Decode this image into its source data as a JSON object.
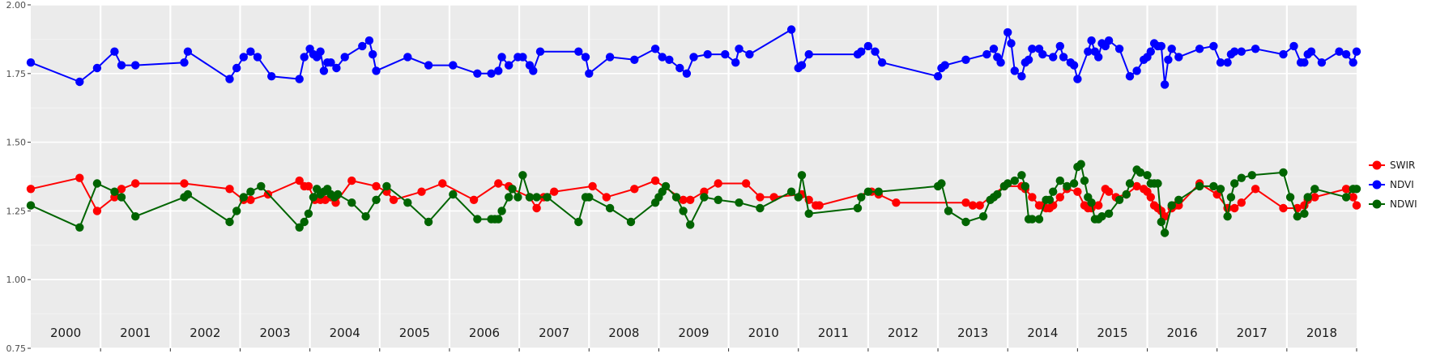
{
  "chart_data": {
    "type": "line",
    "title": "",
    "xlabel": "",
    "ylabel": "",
    "ylim": [
      0.75,
      2.0
    ],
    "yticks": [
      "0.75",
      "1.00",
      "1.25",
      "1.50",
      "1.75",
      "2.00"
    ],
    "ytick_values": [
      0.75,
      1.0,
      1.25,
      1.5,
      1.75,
      2.0
    ],
    "xlim": [
      2000.0,
      2019.0
    ],
    "grid": true,
    "legend_position": "right",
    "year_labels": [
      "2000",
      "2001",
      "2002",
      "2003",
      "2004",
      "2005",
      "2006",
      "2007",
      "2008",
      "2009",
      "2010",
      "2011",
      "2012",
      "2013",
      "2014",
      "2015",
      "2016",
      "2017",
      "2018"
    ],
    "series": [
      {
        "name": "SWIR",
        "color": "#ff0000",
        "x": [
          2000.0,
          2000.7,
          2000.95,
          2001.2,
          2001.3,
          2001.5,
          2002.2,
          2002.85,
          2003.05,
          2003.15,
          2003.4,
          2003.85,
          2003.92,
          2003.98,
          2004.07,
          2004.15,
          2004.22,
          2004.3,
          2004.37,
          2004.6,
          2004.95,
          2005.1,
          2005.2,
          2005.6,
          2005.9,
          2006.35,
          2006.7,
          2006.85,
          2006.9,
          2007.15,
          2007.25,
          2007.35,
          2007.5,
          2008.05,
          2008.25,
          2008.65,
          2008.95,
          2009.35,
          2009.45,
          2009.65,
          2009.85,
          2010.25,
          2010.45,
          2010.65,
          2011.05,
          2011.15,
          2011.25,
          2011.3,
          2012.05,
          2012.15,
          2012.4,
          2013.4,
          2013.5,
          2013.6,
          2013.95,
          2014.2,
          2014.25,
          2014.35,
          2014.45,
          2014.5,
          2014.55,
          2014.6,
          2014.65,
          2014.75,
          2014.85,
          2015.0,
          2015.1,
          2015.15,
          2015.2,
          2015.3,
          2015.4,
          2015.45,
          2015.55,
          2015.7,
          2015.85,
          2015.95,
          2016.0,
          2016.05,
          2016.1,
          2016.15,
          2016.2,
          2016.25,
          2016.35,
          2016.4,
          2016.45,
          2016.75,
          2017.0,
          2017.15,
          2017.25,
          2017.35,
          2017.55,
          2017.95,
          2018.15,
          2018.25,
          2018.3,
          2018.4,
          2018.85,
          2018.95,
          2019.0
        ],
        "y": [
          1.33,
          1.37,
          1.25,
          1.3,
          1.33,
          1.35,
          1.35,
          1.33,
          1.29,
          1.29,
          1.31,
          1.36,
          1.34,
          1.34,
          1.29,
          1.29,
          1.29,
          1.3,
          1.28,
          1.36,
          1.34,
          1.32,
          1.29,
          1.32,
          1.35,
          1.29,
          1.35,
          1.34,
          1.33,
          1.3,
          1.26,
          1.3,
          1.32,
          1.34,
          1.3,
          1.33,
          1.36,
          1.29,
          1.29,
          1.32,
          1.35,
          1.35,
          1.3,
          1.3,
          1.31,
          1.29,
          1.27,
          1.27,
          1.32,
          1.31,
          1.28,
          1.28,
          1.27,
          1.27,
          1.34,
          1.34,
          1.33,
          1.3,
          1.27,
          1.27,
          1.26,
          1.26,
          1.27,
          1.3,
          1.33,
          1.32,
          1.27,
          1.26,
          1.26,
          1.27,
          1.33,
          1.32,
          1.3,
          1.31,
          1.34,
          1.33,
          1.32,
          1.3,
          1.27,
          1.26,
          1.25,
          1.23,
          1.26,
          1.27,
          1.27,
          1.35,
          1.31,
          1.26,
          1.26,
          1.28,
          1.33,
          1.26,
          1.26,
          1.27,
          1.29,
          1.3,
          1.33,
          1.3,
          1.27
        ]
      },
      {
        "name": "NDVI",
        "color": "#0000ff",
        "x": [
          2000.0,
          2000.7,
          2000.95,
          2001.2,
          2001.3,
          2001.5,
          2002.2,
          2002.25,
          2002.85,
          2002.95,
          2003.05,
          2003.15,
          2003.25,
          2003.45,
          2003.85,
          2003.92,
          2004.0,
          2004.05,
          2004.1,
          2004.15,
          2004.2,
          2004.25,
          2004.3,
          2004.38,
          2004.5,
          2004.75,
          2004.85,
          2004.9,
          2004.95,
          2005.4,
          2005.7,
          2006.05,
          2006.4,
          2006.6,
          2006.7,
          2006.75,
          2006.85,
          2006.98,
          2007.05,
          2007.15,
          2007.2,
          2007.3,
          2007.85,
          2007.95,
          2008.0,
          2008.3,
          2008.65,
          2008.95,
          2009.05,
          2009.15,
          2009.3,
          2009.4,
          2009.5,
          2009.7,
          2009.95,
          2010.1,
          2010.15,
          2010.3,
          2010.9,
          2011.0,
          2011.05,
          2011.15,
          2011.85,
          2011.9,
          2012.0,
          2012.1,
          2012.2,
          2013.0,
          2013.05,
          2013.1,
          2013.4,
          2013.7,
          2013.8,
          2013.85,
          2013.9,
          2014.0,
          2014.05,
          2014.1,
          2014.2,
          2014.25,
          2014.3,
          2014.35,
          2014.45,
          2014.5,
          2014.65,
          2014.75,
          2014.8,
          2014.9,
          2014.95,
          2015.0,
          2015.15,
          2015.2,
          2015.25,
          2015.3,
          2015.35,
          2015.4,
          2015.45,
          2015.6,
          2015.75,
          2015.85,
          2015.95,
          2016.0,
          2016.05,
          2016.1,
          2016.15,
          2016.2,
          2016.25,
          2016.3,
          2016.35,
          2016.45,
          2016.75,
          2016.95,
          2017.05,
          2017.15,
          2017.2,
          2017.25,
          2017.35,
          2017.55,
          2017.95,
          2018.1,
          2018.2,
          2018.25,
          2018.3,
          2018.35,
          2018.5,
          2018.75,
          2018.85,
          2018.95,
          2019.0
        ],
        "y": [
          1.79,
          1.72,
          1.77,
          1.83,
          1.78,
          1.78,
          1.79,
          1.83,
          1.73,
          1.77,
          1.81,
          1.83,
          1.81,
          1.74,
          1.73,
          1.81,
          1.84,
          1.82,
          1.81,
          1.83,
          1.76,
          1.79,
          1.79,
          1.77,
          1.81,
          1.85,
          1.87,
          1.82,
          1.76,
          1.81,
          1.78,
          1.78,
          1.75,
          1.75,
          1.76,
          1.81,
          1.78,
          1.81,
          1.81,
          1.78,
          1.76,
          1.83,
          1.83,
          1.81,
          1.75,
          1.81,
          1.8,
          1.84,
          1.81,
          1.8,
          1.77,
          1.75,
          1.81,
          1.82,
          1.82,
          1.79,
          1.84,
          1.82,
          1.91,
          1.77,
          1.78,
          1.82,
          1.82,
          1.83,
          1.85,
          1.83,
          1.79,
          1.74,
          1.77,
          1.78,
          1.8,
          1.82,
          1.84,
          1.81,
          1.79,
          1.9,
          1.86,
          1.76,
          1.74,
          1.79,
          1.8,
          1.84,
          1.84,
          1.82,
          1.81,
          1.85,
          1.81,
          1.79,
          1.78,
          1.73,
          1.83,
          1.87,
          1.83,
          1.81,
          1.86,
          1.85,
          1.87,
          1.84,
          1.74,
          1.76,
          1.8,
          1.81,
          1.83,
          1.86,
          1.85,
          1.85,
          1.71,
          1.8,
          1.84,
          1.81,
          1.84,
          1.85,
          1.79,
          1.79,
          1.82,
          1.83,
          1.83,
          1.84,
          1.82,
          1.85,
          1.79,
          1.79,
          1.82,
          1.83,
          1.79,
          1.83,
          1.82,
          1.79,
          1.83
        ],
        "_note": "series lengths may differ; each series uses its own x array"
      },
      {
        "name": "NDWI",
        "color": "#006400",
        "x": [
          2000.0,
          2000.7,
          2000.95,
          2001.2,
          2001.3,
          2001.5,
          2002.2,
          2002.25,
          2002.85,
          2002.95,
          2003.05,
          2003.15,
          2003.3,
          2003.85,
          2003.92,
          2003.98,
          2004.05,
          2004.1,
          2004.15,
          2004.2,
          2004.25,
          2004.3,
          2004.35,
          2004.4,
          2004.6,
          2004.8,
          2004.95,
          2005.1,
          2005.4,
          2005.7,
          2006.05,
          2006.4,
          2006.6,
          2006.65,
          2006.7,
          2006.75,
          2006.85,
          2006.9,
          2006.98,
          2007.05,
          2007.15,
          2007.25,
          2007.4,
          2007.85,
          2007.95,
          2008.0,
          2008.3,
          2008.6,
          2008.95,
          2009.0,
          2009.05,
          2009.1,
          2009.25,
          2009.35,
          2009.45,
          2009.65,
          2009.85,
          2010.15,
          2010.45,
          2010.9,
          2011.0,
          2011.05,
          2011.15,
          2011.85,
          2011.9,
          2012.0,
          2012.15,
          2013.0,
          2013.05,
          2013.15,
          2013.4,
          2013.65,
          2013.75,
          2013.8,
          2013.85,
          2013.95,
          2014.0,
          2014.1,
          2014.2,
          2014.25,
          2014.3,
          2014.35,
          2014.45,
          2014.55,
          2014.6,
          2014.65,
          2014.75,
          2014.85,
          2014.95,
          2015.0,
          2015.05,
          2015.1,
          2015.15,
          2015.2,
          2015.25,
          2015.3,
          2015.35,
          2015.45,
          2015.6,
          2015.7,
          2015.75,
          2015.85,
          2015.9,
          2016.0,
          2016.05,
          2016.1,
          2016.15,
          2016.2,
          2016.25,
          2016.35,
          2016.45,
          2016.75,
          2016.95,
          2017.05,
          2017.15,
          2017.2,
          2017.25,
          2017.35,
          2017.5,
          2017.95,
          2018.05,
          2018.15,
          2018.25,
          2018.3,
          2018.4,
          2018.85,
          2018.95,
          2019.0
        ],
        "y": [
          1.27,
          1.19,
          1.35,
          1.32,
          1.3,
          1.23,
          1.3,
          1.31,
          1.21,
          1.25,
          1.3,
          1.32,
          1.34,
          1.19,
          1.21,
          1.24,
          1.3,
          1.33,
          1.31,
          1.32,
          1.33,
          1.31,
          1.3,
          1.31,
          1.28,
          1.23,
          1.29,
          1.34,
          1.28,
          1.21,
          1.31,
          1.22,
          1.22,
          1.22,
          1.22,
          1.25,
          1.3,
          1.33,
          1.3,
          1.38,
          1.3,
          1.3,
          1.3,
          1.21,
          1.3,
          1.3,
          1.26,
          1.21,
          1.28,
          1.3,
          1.32,
          1.34,
          1.3,
          1.25,
          1.2,
          1.3,
          1.29,
          1.28,
          1.26,
          1.32,
          1.3,
          1.38,
          1.24,
          1.26,
          1.3,
          1.32,
          1.32,
          1.34,
          1.35,
          1.25,
          1.21,
          1.23,
          1.29,
          1.3,
          1.31,
          1.34,
          1.35,
          1.36,
          1.38,
          1.34,
          1.22,
          1.22,
          1.22,
          1.29,
          1.29,
          1.32,
          1.36,
          1.34,
          1.35,
          1.41,
          1.42,
          1.36,
          1.3,
          1.28,
          1.22,
          1.22,
          1.23,
          1.24,
          1.29,
          1.31,
          1.35,
          1.4,
          1.39,
          1.38,
          1.35,
          1.35,
          1.35,
          1.21,
          1.17,
          1.27,
          1.29,
          1.34,
          1.34,
          1.33,
          1.23,
          1.3,
          1.35,
          1.37,
          1.38,
          1.39,
          1.3,
          1.23,
          1.24,
          1.3,
          1.33,
          1.3,
          1.33,
          1.33
        ]
      }
    ]
  }
}
